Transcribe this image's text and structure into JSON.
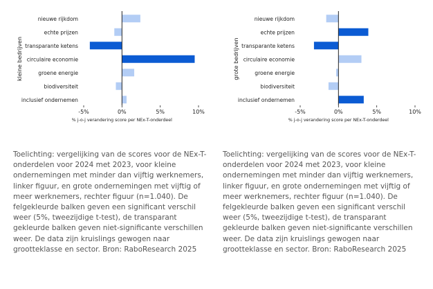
{
  "chart_data": [
    {
      "type": "bar",
      "orientation": "horizontal",
      "ylabel": "kleine bedrijven",
      "xlabel": "% j-o-j verandering score per NEx-T-onderdeel",
      "xlim": [
        -5,
        10
      ],
      "ticks": [
        -5,
        0,
        5,
        10
      ],
      "tick_labels": [
        "-5%",
        "0%",
        "5%",
        "10%"
      ],
      "categories": [
        "nieuwe rijkdom",
        "echte prijzen",
        "transparante ketens",
        "circulaire economie",
        "groene energie",
        "biodiversiteit",
        "inclusief ondernemen"
      ],
      "values": [
        2.4,
        -1.0,
        -4.2,
        9.5,
        1.6,
        -0.8,
        0.6
      ],
      "significant": [
        false,
        false,
        true,
        true,
        false,
        false,
        false
      ]
    },
    {
      "type": "bar",
      "orientation": "horizontal",
      "ylabel": "grote bedrijven",
      "xlabel": "% j-o-j verandering score per NEx-T-onderdeel",
      "xlim": [
        -5,
        10
      ],
      "ticks": [
        -5,
        0,
        5,
        10
      ],
      "tick_labels": [
        "-5%",
        "0%",
        "5%",
        "10%"
      ],
      "categories": [
        "nieuwe rijkdom",
        "echte prijzen",
        "transparante ketens",
        "circulaire economie",
        "groene energie",
        "biodiversiteit",
        "inclusief ondernemen"
      ],
      "values": [
        -1.6,
        3.9,
        -3.2,
        3.0,
        -0.3,
        -1.3,
        3.3
      ],
      "significant": [
        false,
        true,
        true,
        false,
        false,
        false,
        true
      ]
    }
  ],
  "colors": {
    "significant": "#0b5bd3",
    "non_significant": "#b3cdf5",
    "axis": "#222222"
  },
  "captions": {
    "left": "Toelichting: vergelijking van de scores voor de NEx-T-onderdelen voor 2024 met 2023, voor kleine ondernemingen met minder dan vijftig werknemers, linker figuur, en grote ondernemingen met vijftig of meer werknemers, rechter figuur (n=1.040). De felgekleurde balken geven een significant verschil weer (5%, tweezijdige t-test), de transparant gekleurde balken geven niet-significante verschillen weer. De data zijn kruislings gewogen naar grootteklasse en sector. Bron: RaboResearch 2025",
    "right": "Toelichting: vergelijking van de scores voor de NEx-T-onderdelen voor 2024 met 2023, voor kleine ondernemingen met minder dan vijftig werknemers, linker figuur, en grote ondernemingen met vijftig of meer werknemers, rechter figuur (n=1.040). De felgekleurde balken geven een significant verschil weer (5%, tweezijdige t-test), de transparant gekleurde balken geven niet-significante verschillen weer. De data zijn kruislings gewogen naar grootteklasse en sector. Bron: RaboResearch 2025"
  }
}
